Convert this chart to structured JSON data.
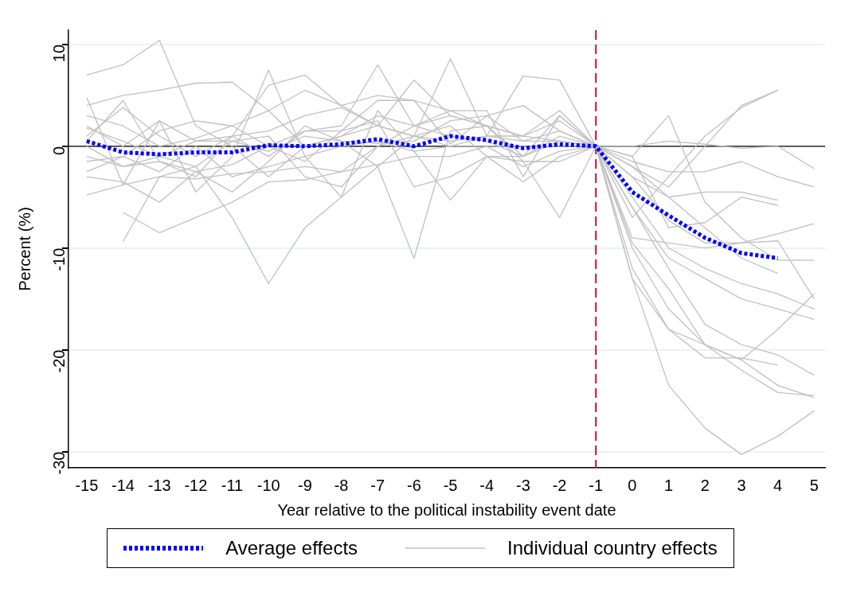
{
  "chart_data": {
    "type": "line",
    "xlabel": "Year relative to the political instability event date",
    "ylabel": "Percent (%)",
    "x": [
      -15,
      -14,
      -13,
      -12,
      -11,
      -10,
      -9,
      -8,
      -7,
      -6,
      -5,
      -4,
      -3,
      -2,
      -1,
      0,
      1,
      2,
      3,
      4,
      5
    ],
    "xlim": [
      -15.5,
      5.3
    ],
    "xticks": [
      -15,
      -14,
      -13,
      -12,
      -11,
      -10,
      -9,
      -8,
      -7,
      -6,
      -5,
      -4,
      -3,
      -2,
      -1,
      0,
      1,
      2,
      3,
      4,
      5
    ],
    "ylim": [
      -31.6,
      11.4
    ],
    "yticks": [
      -30,
      -20,
      -10,
      0,
      10
    ],
    "grid": "y",
    "legend": "bottom",
    "marker": "none",
    "ref_lines": [
      {
        "axis": "y",
        "value": 0,
        "color": "#000000",
        "line_style": "solid"
      },
      {
        "axis": "x",
        "value": -1,
        "color": "#c8102e",
        "line_style": "dashed"
      }
    ],
    "series": [
      {
        "color": "#c0c0c0",
        "name": "Individual country effects",
        "values": [
          7,
          8,
          10.4,
          2,
          0,
          -3,
          0,
          1,
          2,
          1,
          0,
          1,
          6.9,
          6.5,
          0,
          -13,
          -23.5,
          -27.7,
          -30.3,
          -28.5,
          -26
        ]
      },
      {
        "color": "#c0c0c0",
        "values": [
          4,
          5,
          5.5,
          6.2,
          6.3,
          3.5,
          0,
          1,
          3,
          2,
          1,
          0.5,
          -1,
          1,
          0,
          -9.5,
          -14,
          -19.5,
          -21,
          -18,
          -14.5
        ]
      },
      {
        "color": "#c0c0c0",
        "values": [
          1,
          3.8,
          1,
          -1,
          1,
          6,
          7,
          4,
          2,
          1,
          8.6,
          1,
          0.5,
          1.5,
          0,
          -12,
          -18,
          -20.8,
          -20.8,
          -21.5,
          null
        ]
      },
      {
        "color": "#c0c0c0",
        "values": [
          -4.8,
          -3.8,
          -3,
          -3.2,
          -2.7,
          -2.5,
          -2,
          -2.5,
          0,
          2,
          3,
          2,
          1,
          3.5,
          0,
          -13,
          -18,
          -19.5,
          -22,
          -24.2,
          -24.5
        ]
      },
      {
        "color": "#c0c0c0",
        "values": [
          4.8,
          -3.8,
          2.5,
          -4.5,
          -1,
          7.5,
          -1,
          -5,
          3.5,
          -0.5,
          -5.3,
          -1,
          -1,
          3,
          0,
          -10,
          -16,
          -19.5,
          -21,
          -23.5,
          -24.7
        ]
      },
      {
        "color": "#c0c0c0",
        "values": [
          2,
          0,
          2.5,
          0.5,
          1,
          1.5,
          3,
          3.8,
          2,
          6.5,
          3,
          2,
          -1,
          0.5,
          0,
          -6,
          -12,
          -17.5,
          -19.5,
          -20.5,
          -22.5
        ]
      },
      {
        "color": "#c0c0c0",
        "values": [
          -1.5,
          -1,
          1.5,
          2.5,
          2,
          3.5,
          5.5,
          4,
          5,
          4.5,
          3.5,
          2,
          1,
          2.5,
          0,
          -6,
          -11,
          -13,
          -15,
          -16,
          -17
        ]
      },
      {
        "color": "#c0c0c0",
        "values": [
          0.5,
          4.5,
          -1.5,
          -3,
          1,
          -1,
          1.5,
          2,
          8,
          2,
          3.5,
          3.5,
          -3,
          3,
          0,
          -5,
          -10,
          -12,
          -13.5,
          -14.5,
          -16
        ]
      },
      {
        "color": "#c0c0c0",
        "values": [
          null,
          -6.5,
          -8.5,
          -7,
          -5.5,
          -3.5,
          -3.3,
          -2.5,
          -1.8,
          -1,
          -1,
          0,
          0,
          0,
          0,
          -9,
          -9.5,
          -10,
          -9.5,
          -9.3,
          -15
        ]
      },
      {
        "color": "#c0c0c0",
        "values": [
          null,
          -9.4,
          -3,
          -2,
          -7,
          -13.5,
          -8,
          -5,
          -2,
          -11,
          1.5,
          2,
          -1.5,
          -7,
          0,
          -3,
          -7.3,
          -9.5,
          -9.5,
          -8.6,
          -7.6
        ]
      },
      {
        "color": "#c0c0c0",
        "values": [
          -2.5,
          -1,
          -2.5,
          0,
          -3,
          -2,
          -1,
          0,
          0.5,
          -0.5,
          0,
          0,
          -2,
          -0.5,
          0,
          -2,
          -5,
          -8,
          -11,
          -12.5,
          null
        ]
      },
      {
        "color": "#c0c0c0",
        "values": [
          1.8,
          0.5,
          -1,
          -2,
          0.5,
          1,
          -3,
          -4,
          0,
          1,
          2,
          -1,
          -3.5,
          -1,
          0,
          -1,
          3,
          -5.5,
          -9,
          -11.2,
          -11.2
        ]
      },
      {
        "color": "#c0c0c0",
        "values": [
          0,
          -2,
          -1.5,
          -2.5,
          -4.5,
          -1.5,
          2,
          0.5,
          -2,
          1,
          0.5,
          1,
          1,
          0.5,
          0,
          -3,
          -5,
          -4.5,
          -4.5,
          -5.3,
          null
        ]
      },
      {
        "color": "#c0c0c0",
        "values": [
          3,
          2,
          0,
          0.8,
          2,
          0,
          -1.5,
          1.5,
          4.5,
          4.5,
          0.2,
          3,
          4,
          1.5,
          0,
          -1.5,
          -2.5,
          -2.5,
          -1.5,
          -3,
          -4
        ]
      },
      {
        "color": "#c0c0c0",
        "values": [
          -1,
          -2,
          -1,
          0.5,
          0.5,
          -0.5,
          1,
          0.5,
          0.3,
          0.5,
          2.5,
          3,
          0.5,
          0.5,
          0,
          0,
          0.5,
          0.2,
          -0.2,
          0,
          -2.2
        ]
      },
      {
        "color": "#c0c0c0",
        "values": [
          -3,
          -3.5,
          -5.5,
          -2.5,
          -1.8,
          0,
          1.5,
          1.5,
          2.5,
          -4,
          -3,
          -1,
          -1.5,
          -1.5,
          0,
          -2,
          -4,
          0,
          4,
          5.5,
          null
        ]
      },
      {
        "color": "#c0c0c0",
        "values": [
          null,
          null,
          null,
          null,
          null,
          null,
          null,
          null,
          null,
          null,
          null,
          null,
          null,
          null,
          0,
          -7,
          -3,
          1,
          3.8,
          5.5,
          null
        ]
      },
      {
        "color": "#c0c0c0",
        "values": [
          null,
          null,
          null,
          null,
          null,
          null,
          null,
          null,
          null,
          null,
          null,
          null,
          null,
          null,
          0,
          -1,
          -8,
          -7.5,
          -5,
          -5.8,
          null
        ]
      },
      {
        "color": "#0000ff",
        "name": "Average effects",
        "line_style": "dotted",
        "values": [
          0.5,
          -0.6,
          -0.8,
          -0.6,
          -0.6,
          0.1,
          0,
          0.2,
          0.7,
          0,
          1,
          0.6,
          -0.2,
          0.2,
          0,
          -4.5,
          -6.8,
          -9,
          -10.5,
          -11,
          null
        ]
      }
    ]
  }
}
